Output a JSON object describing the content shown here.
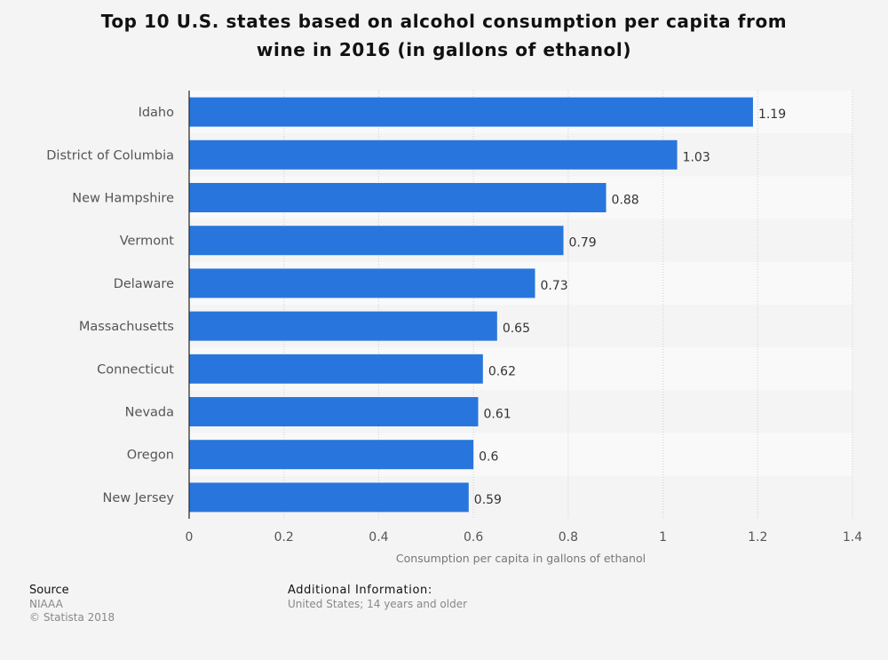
{
  "chart_data": {
    "type": "bar",
    "orientation": "horizontal",
    "title": "Top 10 U.S. states based on alcohol consumption per capita from wine in 2016 (in gallons of ethanol)",
    "categories": [
      "Idaho",
      "District of Columbia",
      "New Hampshire",
      "Vermont",
      "Delaware",
      "Massachusetts",
      "Connecticut",
      "Nevada",
      "Oregon",
      "New Jersey"
    ],
    "values": [
      1.19,
      1.03,
      0.88,
      0.79,
      0.73,
      0.65,
      0.62,
      0.61,
      0.6,
      0.59
    ],
    "value_labels": [
      "1.19",
      "1.03",
      "0.88",
      "0.79",
      "0.73",
      "0.65",
      "0.62",
      "0.61",
      "0.6",
      "0.59"
    ],
    "xlabel": "Consumption per capita in gallons of ethanol",
    "ylabel": "",
    "xlim": [
      0,
      1.4
    ],
    "xticks": [
      0,
      0.2,
      0.4,
      0.6,
      0.8,
      1,
      1.2,
      1.4
    ],
    "xtick_labels": [
      "0",
      "0.2",
      "0.4",
      "0.6",
      "0.8",
      "1",
      "1.2",
      "1.4"
    ],
    "grid": true,
    "legend": "none",
    "colors": {
      "bar": "#2876dd",
      "background": "#f4f4f4",
      "band_light": "#f9f9f9",
      "band_dark": "#f4f4f4",
      "grid": "#cfcfcf",
      "axis": "#333333",
      "category_text": "#555555",
      "value_text": "#333333",
      "tick_text": "#555555",
      "xlabel_text": "#777777"
    }
  },
  "title_line1": "Top 10 U.S. states based on alcohol consumption per capita from",
  "title_line2": "wine in 2016 (in gallons of ethanol)",
  "footer": {
    "source_heading": "Source",
    "source_name": "NIAAA",
    "copyright": "© Statista 2018",
    "additional_heading": "Additional Information:",
    "additional_text": "United States; 14 years and older"
  }
}
